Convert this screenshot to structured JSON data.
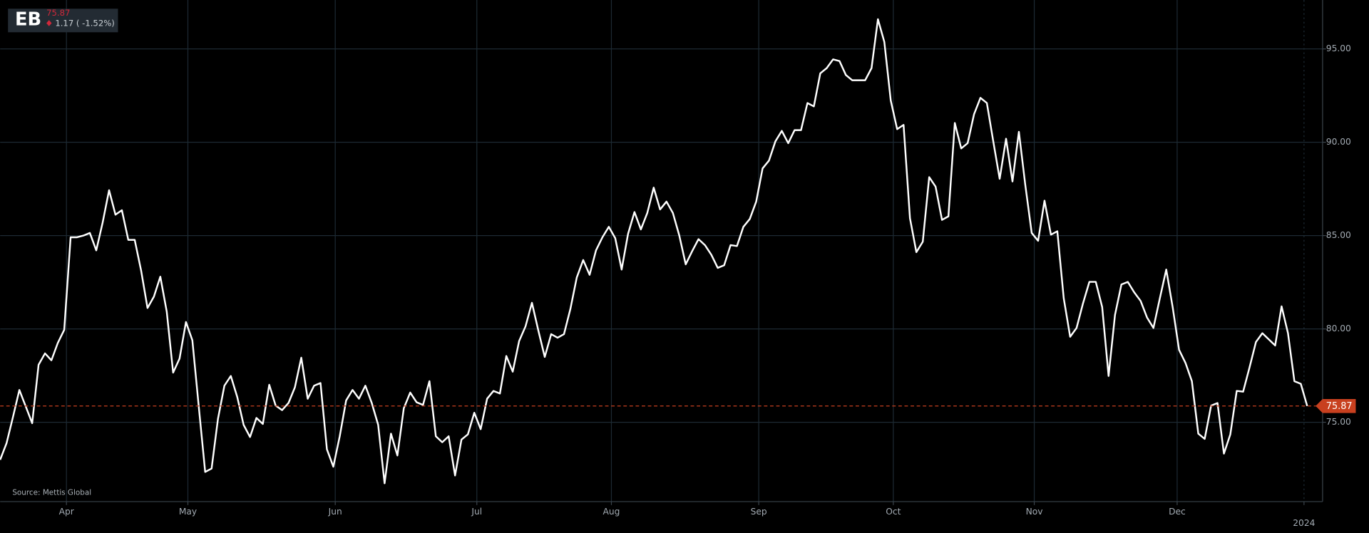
{
  "chart_data": {
    "type": "line",
    "title": "EB",
    "last_value": 75.87,
    "change_label": "1.17 ( -1.52%)",
    "source": "Source: Mettis Global",
    "color": "#ffffff",
    "reference_color": "#c8401f",
    "grid": true,
    "xlim": [
      0,
      206.4
    ],
    "xticks": [
      {
        "value": 10.35,
        "label": "Apr"
      },
      {
        "value": 29.3,
        "label": "May"
      },
      {
        "value": 52.3,
        "label": "Jun"
      },
      {
        "value": 74.4,
        "label": "Jul"
      },
      {
        "value": 95.4,
        "label": "Aug"
      },
      {
        "value": 118.4,
        "label": "Sep"
      },
      {
        "value": 139.4,
        "label": "Oct"
      },
      {
        "value": 161.4,
        "label": "Nov"
      },
      {
        "value": 183.7,
        "label": "Dec"
      },
      {
        "value": 203.5,
        "label": "2024"
      }
    ],
    "ylim": [
      70.75,
      97.62
    ],
    "yticks": [
      {
        "value": 75,
        "label": "75.00"
      },
      {
        "value": 80,
        "label": "80.00"
      },
      {
        "value": 85,
        "label": "85.00"
      },
      {
        "value": 90,
        "label": "90.00"
      },
      {
        "value": 95,
        "label": "95.00"
      }
    ],
    "values": [
      72.99,
      73.88,
      75.28,
      76.73,
      75.84,
      74.95,
      78.08,
      78.69,
      78.32,
      79.25,
      79.95,
      84.91,
      84.91,
      85.0,
      85.14,
      84.21,
      85.7,
      87.43,
      86.12,
      86.36,
      84.77,
      84.77,
      83.13,
      81.12,
      81.73,
      82.8,
      80.93,
      77.66,
      78.41,
      80.37,
      79.39,
      75.84,
      72.34,
      72.52,
      75.19,
      76.96,
      77.48,
      76.36,
      74.86,
      74.21,
      75.23,
      74.91,
      77.01,
      75.89,
      75.65,
      76.03,
      76.87,
      78.46,
      76.26,
      76.96,
      77.1,
      73.55,
      72.62,
      74.25,
      76.17,
      76.73,
      76.26,
      76.96,
      76.03,
      74.86,
      71.73,
      74.39,
      73.22,
      75.75,
      76.59,
      76.07,
      75.93,
      77.2,
      74.25,
      73.93,
      74.25,
      72.15,
      74.07,
      74.35,
      75.51,
      74.63,
      76.26,
      76.68,
      76.54,
      78.55,
      77.71,
      79.35,
      80.14,
      81.4,
      79.91,
      78.5,
      79.72,
      79.53,
      79.72,
      81.07,
      82.76,
      83.69,
      82.9,
      84.21,
      84.91,
      85.47,
      84.86,
      83.18,
      85.09,
      86.26,
      85.33,
      86.21,
      87.57,
      86.4,
      86.82,
      86.21,
      85.0,
      83.46,
      84.16,
      84.81,
      84.49,
      83.97,
      83.27,
      83.41,
      84.49,
      84.44,
      85.47,
      85.89,
      86.82,
      88.6,
      89.02,
      90.05,
      90.61,
      89.95,
      90.65,
      90.65,
      92.1,
      91.92,
      93.69,
      93.97,
      94.44,
      94.35,
      93.6,
      93.32,
      93.32,
      93.32,
      93.97,
      96.59,
      95.37,
      92.24,
      90.7,
      90.93,
      85.93,
      84.11,
      84.67,
      88.13,
      87.62,
      85.84,
      86.03,
      91.03,
      89.67,
      89.95,
      91.5,
      92.38,
      92.1,
      90.05,
      88.04,
      90.19,
      87.9,
      90.56,
      87.71,
      85.14,
      84.72,
      86.87,
      85.05,
      85.23,
      81.64,
      79.58,
      80.05,
      81.36,
      82.52,
      82.52,
      81.17,
      77.48,
      80.75,
      82.38,
      82.52,
      81.96,
      81.5,
      80.61,
      80.05,
      81.64,
      83.18,
      81.17,
      78.88,
      78.18,
      77.2,
      74.39,
      74.11,
      75.89,
      76.03,
      73.32,
      74.35,
      76.68,
      76.64,
      77.94,
      79.3,
      79.77,
      79.44,
      79.11,
      81.21,
      79.77,
      77.2,
      77.06,
      75.87
    ]
  }
}
